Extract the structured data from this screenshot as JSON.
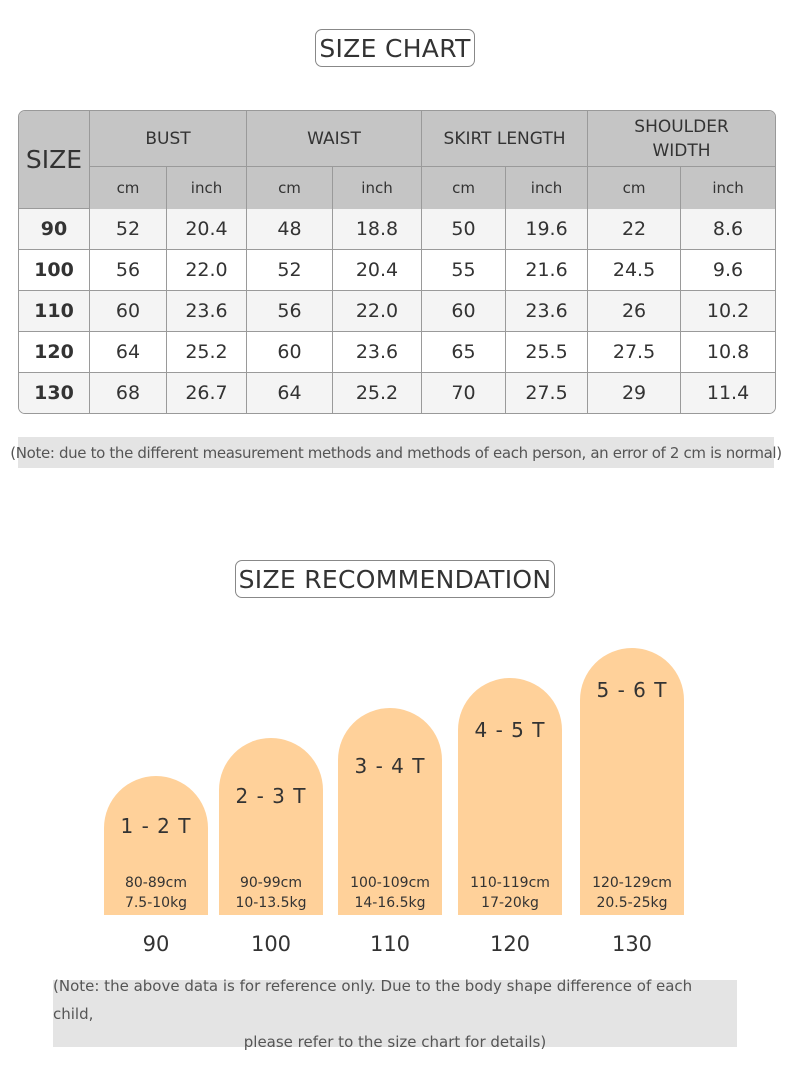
{
  "size_chart": {
    "title": "SIZE CHART",
    "size_header": "SIZE",
    "columns": [
      {
        "name": "BUST",
        "name_lines": [
          "BUST"
        ]
      },
      {
        "name": "WAIST",
        "name_lines": [
          "WAIST"
        ]
      },
      {
        "name": "SKIRT LENGTH",
        "name_lines": [
          "SKIRT LENGTH"
        ]
      },
      {
        "name": "SHOULDER WIDTH",
        "name_lines": [
          "SHOULDER",
          "WIDTH"
        ]
      }
    ],
    "units": [
      "cm",
      "inch"
    ],
    "rows": [
      {
        "size": "90",
        "values": [
          "52",
          "20.4",
          "48",
          "18.8",
          "50",
          "19.6",
          "22",
          "8.6"
        ]
      },
      {
        "size": "100",
        "values": [
          "56",
          "22.0",
          "52",
          "20.4",
          "55",
          "21.6",
          "24.5",
          "9.6"
        ]
      },
      {
        "size": "110",
        "values": [
          "60",
          "23.6",
          "56",
          "22.0",
          "60",
          "23.6",
          "26",
          "10.2"
        ]
      },
      {
        "size": "120",
        "values": [
          "64",
          "25.2",
          "60",
          "23.6",
          "65",
          "25.5",
          "27.5",
          "10.8"
        ]
      },
      {
        "size": "130",
        "values": [
          "68",
          "26.7",
          "64",
          "25.2",
          "70",
          "27.5",
          "29",
          "11.4"
        ]
      }
    ],
    "note": "(Note: due to the different measurement methods and methods of each person, an error of 2 cm is normal)"
  },
  "recommendation": {
    "title": "SIZE RECOMMENDATION",
    "items": [
      {
        "age": "1 - 2 T",
        "height": "80-89cm",
        "weight": "7.5-10kg",
        "size": "90"
      },
      {
        "age": "2 - 3 T",
        "height": "90-99cm",
        "weight": "10-13.5kg",
        "size": "100"
      },
      {
        "age": "3 - 4 T",
        "height": "100-109cm",
        "weight": "14-16.5kg",
        "size": "110"
      },
      {
        "age": "4 - 5 T",
        "height": "110-119cm",
        "weight": "17-20kg",
        "size": "120"
      },
      {
        "age": "5 - 6 T",
        "height": "120-129cm",
        "weight": "20.5-25kg",
        "size": "130"
      }
    ],
    "note_line1": "(Note: the above data is for reference only. Due to the body shape difference of each child,",
    "note_line2": "please refer to the size chart for details)"
  },
  "colors": {
    "bar": "#ffd19a",
    "table_header": "#c5c5c5",
    "note_bg": "#e4e4e4"
  }
}
